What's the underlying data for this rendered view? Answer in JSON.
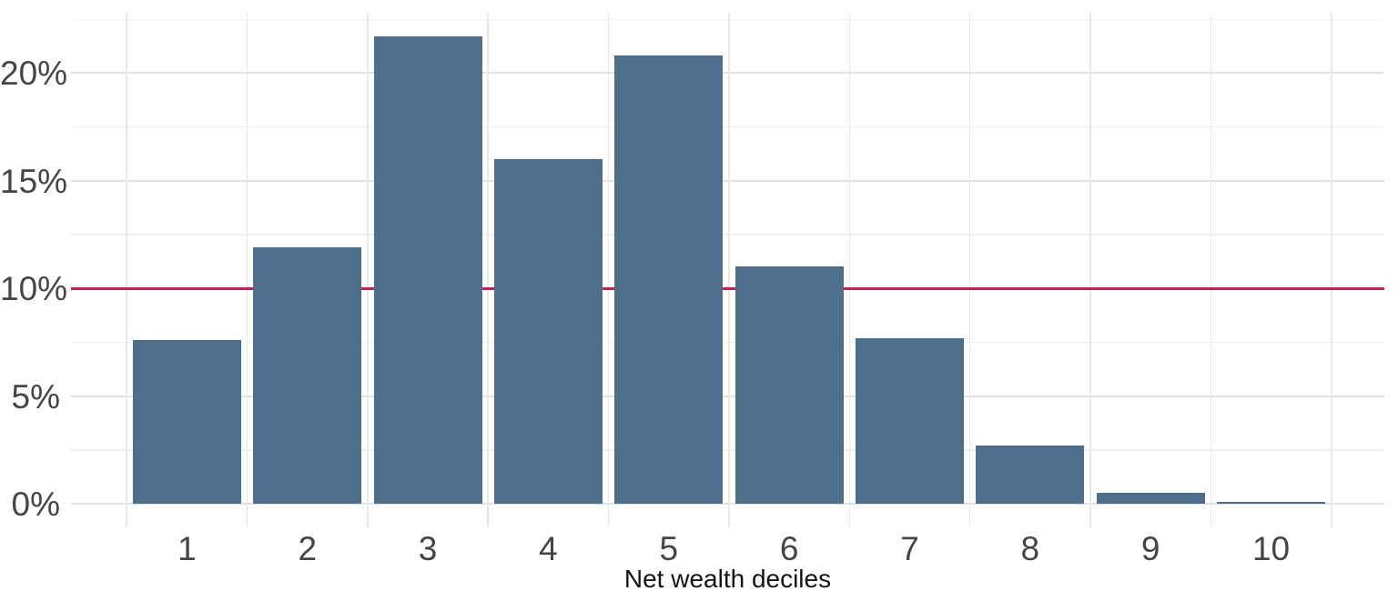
{
  "figure": {
    "background": "#ffffff"
  },
  "chart_data": {
    "type": "bar",
    "title": "",
    "xlabel": "Net wealth deciles",
    "ylabel": "",
    "unit": "%",
    "categories": [
      "1",
      "2",
      "3",
      "4",
      "5",
      "6",
      "7",
      "8",
      "9",
      "10"
    ],
    "values": [
      7.6,
      11.9,
      21.7,
      16.0,
      20.8,
      11.0,
      7.7,
      2.7,
      0.5,
      0.1
    ],
    "bar_color": "#4d6f8b",
    "ylim": [
      -1.1,
      22.8
    ],
    "y_major_ticks": [
      {
        "value": 0,
        "label": "0%"
      },
      {
        "value": 5,
        "label": "5%"
      },
      {
        "value": 10,
        "label": "10%"
      },
      {
        "value": 15,
        "label": "15%"
      },
      {
        "value": 20,
        "label": "20%"
      }
    ],
    "y_minor_tick_values": [
      2.5,
      7.5,
      12.5,
      17.5,
      22.5
    ],
    "grid": "on",
    "grid_major_color": "#e2e2e2",
    "grid_minor_color": "#efefef",
    "legend": "none",
    "reference_line": {
      "axis": "y",
      "value": 10,
      "color": "#c51f5a"
    }
  }
}
